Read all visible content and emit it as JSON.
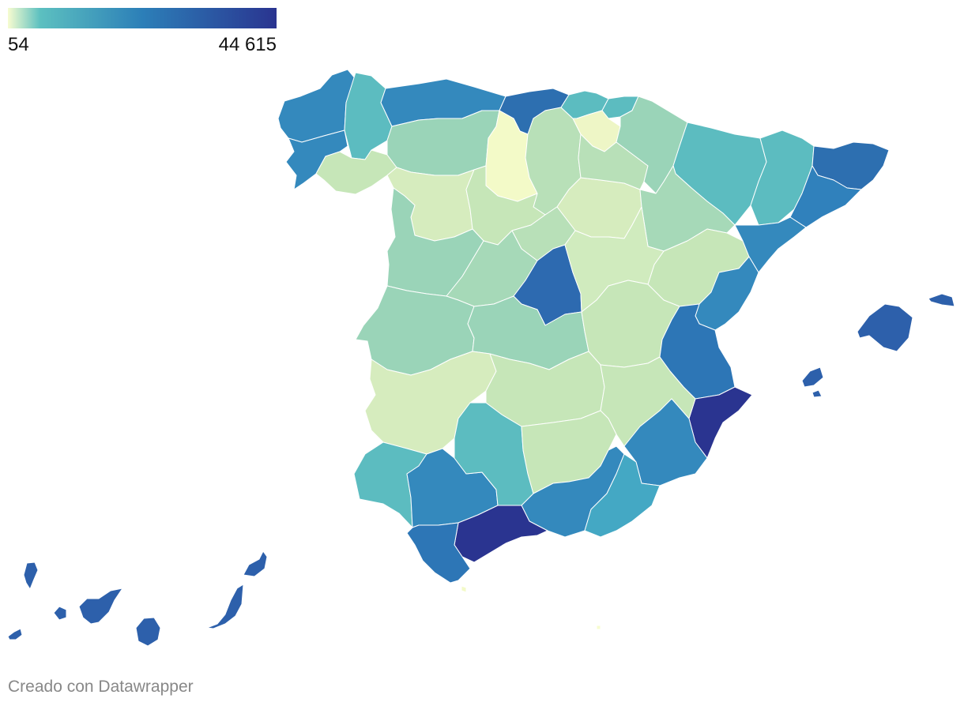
{
  "legend": {
    "min_label": "54",
    "max_label": "44 615",
    "min_value": 54,
    "max_value": 44615,
    "color_stops": [
      "#f7fcd0",
      "#5cc0c0",
      "#2c7fb8",
      "#2a3490"
    ]
  },
  "credit": "Creado con Datawrapper",
  "regions": [
    {
      "id": "a-coruna",
      "color": "#3489bd"
    },
    {
      "id": "lugo",
      "color": "#5cbcc0"
    },
    {
      "id": "pontevedra",
      "color": "#3489bd"
    },
    {
      "id": "ourense",
      "color": "#c6e6b8"
    },
    {
      "id": "asturias",
      "color": "#3489bd"
    },
    {
      "id": "cantabria",
      "color": "#2d6fb0"
    },
    {
      "id": "leon",
      "color": "#9ad4b8"
    },
    {
      "id": "palencia",
      "color": "#f3fac8"
    },
    {
      "id": "burgos",
      "color": "#b8e0b8"
    },
    {
      "id": "zamora",
      "color": "#d6ecbe"
    },
    {
      "id": "valladolid",
      "color": "#c6e6b8"
    },
    {
      "id": "soria",
      "color": "#d6ecbe"
    },
    {
      "id": "bizkaia",
      "color": "#5cbcc0"
    },
    {
      "id": "gipuzkoa",
      "color": "#5cbcc0"
    },
    {
      "id": "alava",
      "color": "#eef6c6"
    },
    {
      "id": "la-rioja",
      "color": "#b8e0b8"
    },
    {
      "id": "navarra",
      "color": "#9ad4b8"
    },
    {
      "id": "huesca",
      "color": "#5cbcc0"
    },
    {
      "id": "zaragoza",
      "color": "#a6d9b8"
    },
    {
      "id": "teruel",
      "color": "#c6e6b8"
    },
    {
      "id": "lleida",
      "color": "#5cbcc0"
    },
    {
      "id": "girona",
      "color": "#2d6fb0"
    },
    {
      "id": "barcelona",
      "color": "#3081bc"
    },
    {
      "id": "tarragona",
      "color": "#3489bd"
    },
    {
      "id": "salamanca",
      "color": "#9ad4b8"
    },
    {
      "id": "avila",
      "color": "#a6d9b8"
    },
    {
      "id": "segovia",
      "color": "#b8e0b8"
    },
    {
      "id": "madrid",
      "color": "#2d6ab0"
    },
    {
      "id": "guadalajara",
      "color": "#d0ebbe"
    },
    {
      "id": "caceres",
      "color": "#9ad4b8"
    },
    {
      "id": "toledo",
      "color": "#9ad4b8"
    },
    {
      "id": "cuenca",
      "color": "#c6e6b8"
    },
    {
      "id": "castellon",
      "color": "#3489bd"
    },
    {
      "id": "valencia",
      "color": "#2d76b6"
    },
    {
      "id": "alicante",
      "color": "#2a3490"
    },
    {
      "id": "badajoz",
      "color": "#d6ecbe"
    },
    {
      "id": "ciudad-real",
      "color": "#c6e6b8"
    },
    {
      "id": "albacete",
      "color": "#c6e6b8"
    },
    {
      "id": "murcia",
      "color": "#3489bd"
    },
    {
      "id": "huelva",
      "color": "#5cbcc0"
    },
    {
      "id": "sevilla",
      "color": "#3489bd"
    },
    {
      "id": "cordoba",
      "color": "#5cbcc0"
    },
    {
      "id": "jaen",
      "color": "#c6e6b8"
    },
    {
      "id": "granada",
      "color": "#3489bd"
    },
    {
      "id": "almeria",
      "color": "#44a8c4"
    },
    {
      "id": "malaga",
      "color": "#2a3490"
    },
    {
      "id": "cadiz",
      "color": "#2d76b6"
    },
    {
      "id": "ceuta",
      "color": "#f3fac8"
    },
    {
      "id": "melilla",
      "color": "#f7fcd0"
    },
    {
      "id": "mallorca",
      "color": "#2d60ab"
    },
    {
      "id": "menorca",
      "color": "#2d60ab"
    },
    {
      "id": "ibiza",
      "color": "#2d60ab"
    },
    {
      "id": "formentera",
      "color": "#2d60ab"
    },
    {
      "id": "lanzarote",
      "color": "#2d60ab"
    },
    {
      "id": "fuerteventura",
      "color": "#2d60ab"
    },
    {
      "id": "gran-canaria",
      "color": "#2d60ab"
    },
    {
      "id": "tenerife",
      "color": "#2d60ab"
    },
    {
      "id": "la-gomera",
      "color": "#2d60ab"
    },
    {
      "id": "la-palma",
      "color": "#2d60ab"
    },
    {
      "id": "el-hierro",
      "color": "#2d60ab"
    }
  ]
}
